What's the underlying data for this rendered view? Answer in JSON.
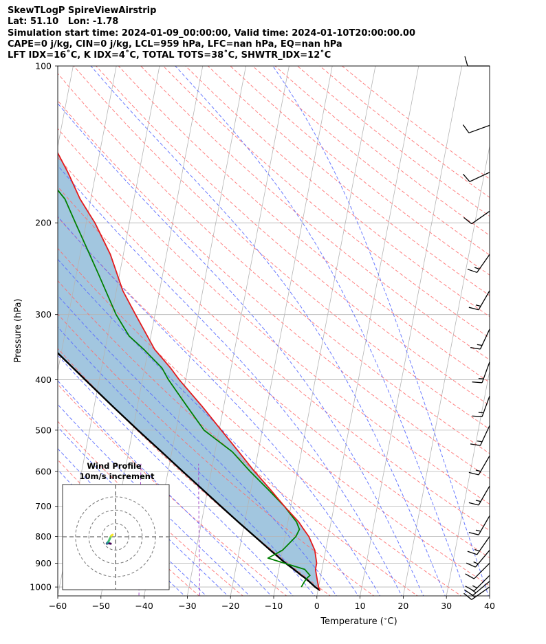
{
  "header": {
    "title": "SkewTLogP SpireViewAirstrip",
    "location": "Lat: 51.10   Lon: -1.78",
    "times": "Simulation start time: 2024-01-09_00:00:00, Valid time: 2024-01-10T20:00:00.00",
    "indices1": "CAPE=0 j/kg, CIN=0 j/kg, LCL=959 hPa, LFC=nan hPa, EQ=nan hPa",
    "indices2": "LFT IDX=16˚C, K IDX=4˚C, TOTAL TOTS=38˚C, SHWTR_IDX=12˚C"
  },
  "inset": {
    "title": "Wind Profile",
    "subtitle": "10m/s increment"
  },
  "colors": {
    "temperature": "#e41a1c",
    "dewpoint": "#008000",
    "parcel": "#000000",
    "shade": "#a2c6df",
    "dry_adiabat": "#ff6b6b",
    "moist_adiabat": "#5a6bff",
    "mixing_ratio": "#a349c9",
    "isotherm": "#b4b4b4"
  },
  "chart_data": {
    "type": "line",
    "subtype": "skew-T log-P",
    "xlabel": "Temperature ($^\\circ$C)",
    "ylabel": "Pressure (hPa)",
    "xlim": [
      -60,
      40
    ],
    "ylim": [
      1040,
      100
    ],
    "y_scale": "log",
    "x_ticks": [
      "−60",
      "−50",
      "−40",
      "−30",
      "−20",
      "−10",
      "0",
      "10",
      "20",
      "30",
      "40"
    ],
    "y_ticks": [
      "100",
      "200",
      "300",
      "400",
      "500",
      "600",
      "700",
      "800",
      "900",
      "1000"
    ],
    "grid": true,
    "series": [
      {
        "key": "temperature",
        "pressure": [
          1015,
          1000,
          975,
          950,
          925,
          900,
          850,
          800,
          775,
          750,
          700,
          650,
          600,
          550,
          500,
          450,
          400,
          380,
          350,
          300,
          270,
          230,
          200,
          180,
          160,
          140,
          120,
          110,
          100
        ],
        "values": [
          0.5,
          0,
          -0.5,
          -1,
          -1.5,
          -1.5,
          -2.5,
          -4.5,
          -6,
          -7.5,
          -11.5,
          -15.5,
          -20,
          -24.5,
          -29.5,
          -35,
          -41.5,
          -44,
          -48.5,
          -54.5,
          -58.5,
          -63,
          -68,
          -72.5,
          -76.5,
          -81.5,
          -87.5,
          -91,
          -95.5
        ]
      },
      {
        "key": "dewpoint",
        "pressure": [
          1000,
          975,
          960,
          950,
          925,
          900,
          880,
          860,
          850,
          830,
          800,
          775,
          750,
          700,
          650,
          600,
          550,
          500,
          450,
          400,
          380,
          350,
          330,
          300,
          250,
          200,
          180,
          170,
          150,
          120,
          100
        ],
        "values": [
          -4,
          -3.5,
          -3,
          -2.5,
          -4,
          -9,
          -13,
          -11,
          -10,
          -9,
          -7.5,
          -7,
          -8,
          -11.5,
          -16,
          -21,
          -26,
          -33.5,
          -38.5,
          -44,
          -46,
          -51,
          -55,
          -59,
          -65,
          -72.5,
          -76,
          -79,
          -86.5,
          -98,
          -107
        ]
      },
      {
        "key": "parcel",
        "pressure": [
          1015,
          1000,
          975,
          959,
          950,
          925,
          900,
          850,
          800,
          750,
          700,
          650,
          600,
          550,
          500,
          450,
          400,
          350,
          300,
          250,
          200,
          150,
          120,
          100
        ],
        "values": [
          0.5,
          -0.8,
          -2.5,
          -3.7,
          -4.5,
          -6.5,
          -8.7,
          -12.8,
          -17,
          -21.5,
          -26.2,
          -31.2,
          -36.6,
          -42.4,
          -48.8,
          -55.7,
          -63.3,
          -71.8,
          -81.5,
          -92.5,
          -105.5,
          -121,
          -133,
          -143
        ]
      }
    ],
    "wind_barbs": {
      "pressure": [
        100,
        130,
        160,
        190,
        230,
        270,
        320,
        370,
        430,
        490,
        560,
        640,
        730,
        800,
        850,
        900,
        950,
        975,
        1000
      ],
      "speed_kt": [
        10,
        10,
        10,
        10,
        15,
        15,
        15,
        15,
        15,
        15,
        15,
        15,
        15,
        15,
        15,
        10,
        15,
        15,
        15
      ],
      "dir_deg": [
        270,
        250,
        245,
        235,
        215,
        210,
        205,
        200,
        200,
        205,
        210,
        210,
        210,
        215,
        220,
        225,
        225,
        230,
        235
      ]
    },
    "hodograph": {
      "title": "Wind Profile",
      "subtitle": "10m/s increment",
      "rings_ms": [
        10,
        20,
        30
      ],
      "range_ms": 40,
      "u": [
        -3.6,
        -5.3,
        -6.0,
        -6.5,
        -6.5,
        -6.2,
        -5.5,
        -5.0,
        -4.3,
        -3.6,
        -3.0,
        -2.2
      ],
      "v": [
        -5.2,
        -4.8,
        -5.0,
        -5.2,
        -5.0,
        -4.6,
        -4.0,
        -3.0,
        -1.5,
        0.0,
        1.0,
        1.5
      ]
    }
  }
}
